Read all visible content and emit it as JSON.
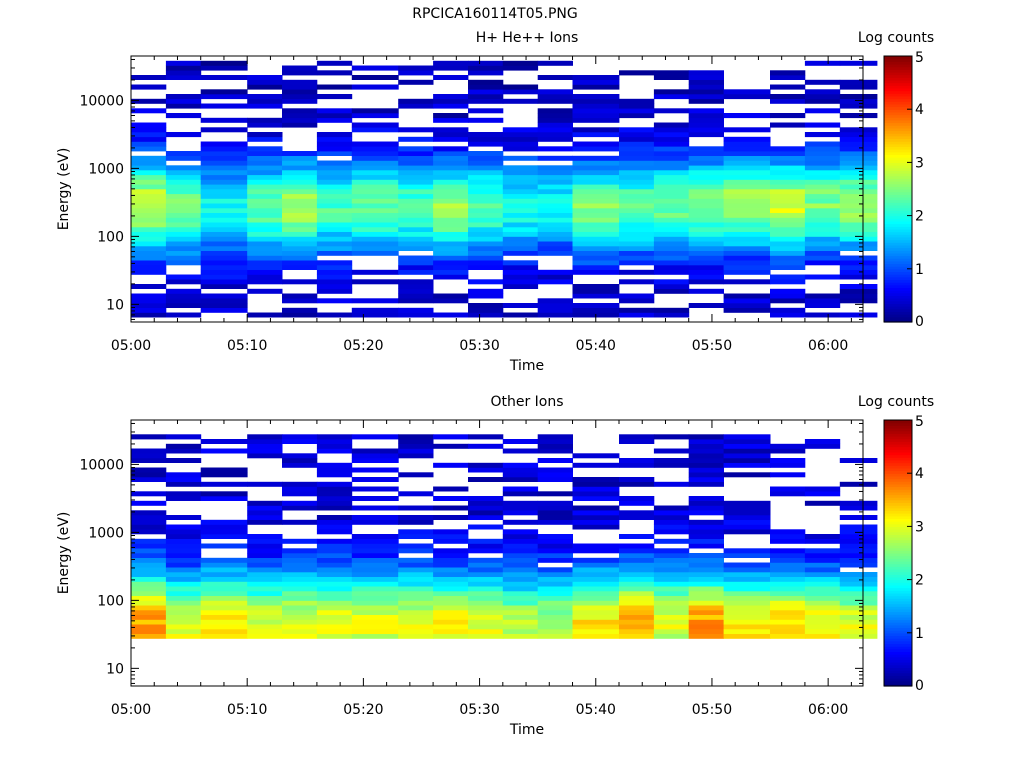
{
  "figure": {
    "title": "RPCICA160114T05.PNG"
  },
  "chart_data": [
    {
      "type": "heatmap",
      "title": "H+ He++ Ions",
      "xlabel": "Time",
      "ylabel": "Energy (eV)",
      "x_ticks": [
        "05:00",
        "05:10",
        "05:20",
        "05:30",
        "05:40",
        "05:50",
        "06:00"
      ],
      "x_range": [
        "05:00",
        "06:03"
      ],
      "y_scale": "log",
      "y_ticks": [
        "10",
        "100",
        "1000",
        "10000"
      ],
      "y_range": [
        5.5,
        45000
      ],
      "colorbar": {
        "label": "Log counts",
        "ticks": [
          "0",
          "1",
          "2",
          "3",
          "4",
          "5"
        ],
        "range": [
          0,
          5
        ]
      },
      "time_bins": [
        "05:00",
        "05:03",
        "05:06",
        "05:10",
        "05:13",
        "05:16",
        "05:19",
        "05:23",
        "05:26",
        "05:29",
        "05:32",
        "05:35",
        "05:38",
        "05:42",
        "05:45",
        "05:48",
        "05:51",
        "05:55",
        "05:58",
        "06:01"
      ],
      "profile": {
        "peak_energy": [
          280,
          260,
          250,
          260,
          270,
          260,
          280,
          270,
          260,
          270,
          260,
          280,
          260,
          270,
          280,
          290,
          300,
          280,
          300,
          300
        ],
        "peak_log_counts": [
          2.6,
          2.2,
          1.6,
          2.1,
          2.4,
          1.9,
          2.1,
          2.0,
          2.3,
          2.0,
          1.7,
          1.6,
          2.2,
          2.0,
          2.1,
          2.2,
          2.4,
          2.6,
          2.2,
          2.4
        ],
        "width_decades": 0.5,
        "min_energy": 6,
        "max_energy": 40000,
        "background_log_counts": 0.3
      }
    },
    {
      "type": "heatmap",
      "title": "Other Ions",
      "xlabel": "Time",
      "ylabel": "Energy (eV)",
      "x_ticks": [
        "05:00",
        "05:10",
        "05:20",
        "05:30",
        "05:40",
        "05:50",
        "06:00"
      ],
      "x_range": [
        "05:00",
        "06:03"
      ],
      "y_scale": "log",
      "y_ticks": [
        "10",
        "100",
        "1000",
        "10000"
      ],
      "y_range": [
        5.5,
        45000
      ],
      "colorbar": {
        "label": "Log counts",
        "ticks": [
          "0",
          "1",
          "2",
          "3",
          "4",
          "5"
        ],
        "range": [
          0,
          5
        ]
      },
      "time_bins": [
        "05:00",
        "05:03",
        "05:06",
        "05:10",
        "05:13",
        "05:16",
        "05:19",
        "05:23",
        "05:26",
        "05:29",
        "05:32",
        "05:35",
        "05:38",
        "05:42",
        "05:45",
        "05:48",
        "05:51",
        "05:55",
        "05:58",
        "06:01"
      ],
      "profile": {
        "peak_energy": [
          45,
          40,
          45,
          40,
          45,
          45,
          45,
          45,
          40,
          40,
          40,
          40,
          45,
          45,
          45,
          40,
          40,
          40,
          40,
          40
        ],
        "peak_log_counts": [
          3.2,
          2.6,
          2.8,
          2.6,
          2.6,
          2.6,
          2.6,
          2.6,
          2.8,
          2.6,
          2.4,
          2.4,
          2.8,
          3.2,
          2.6,
          3.3,
          2.8,
          3.0,
          2.8,
          2.6
        ],
        "width_decades": 0.55,
        "min_energy": 27,
        "max_energy": 30000,
        "background_log_counts": 0.4
      }
    }
  ]
}
